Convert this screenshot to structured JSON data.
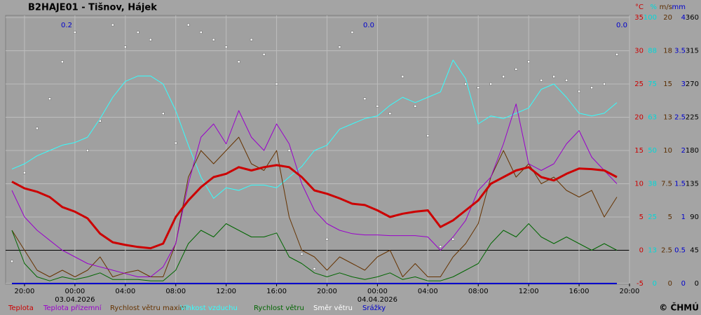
{
  "chart_data": {
    "type": "line",
    "title": "B2HAJE01 - Tišnov, Hájek",
    "copyright": "© ČHMÚ",
    "x": [
      -5,
      -4,
      -3,
      -2,
      -1,
      0,
      1,
      2,
      3,
      4,
      5,
      6,
      7,
      8,
      9,
      10,
      11,
      12,
      13,
      14,
      15,
      16,
      17,
      18,
      19,
      20,
      21,
      22,
      23,
      24,
      25,
      26,
      27,
      28,
      29,
      30,
      31,
      32,
      33,
      34,
      35,
      36,
      37,
      38,
      39,
      40,
      41,
      42,
      43
    ],
    "xlim": [
      -5.5,
      44
    ],
    "xticks": [
      {
        "value": -4,
        "label": "20:00"
      },
      {
        "value": 0,
        "label": "00:00"
      },
      {
        "value": 4,
        "label": "04:00"
      },
      {
        "value": 8,
        "label": "08:00"
      },
      {
        "value": 12,
        "label": "12:00"
      },
      {
        "value": 16,
        "label": "16:00"
      },
      {
        "value": 20,
        "label": "20:00"
      },
      {
        "value": 24,
        "label": "00:00"
      },
      {
        "value": 28,
        "label": "04:00"
      },
      {
        "value": 32,
        "label": "08:00"
      },
      {
        "value": 36,
        "label": "12:00"
      },
      {
        "value": 40,
        "label": "16:00"
      },
      {
        "value": 44,
        "label": "20:00"
      }
    ],
    "dates": [
      {
        "value": 0,
        "label": "03.04.2026"
      },
      {
        "value": 24,
        "label": "04.04.2026"
      }
    ],
    "precip_totals": [
      0.2,
      0,
      0
    ],
    "precip_total_labels": [
      "0.2",
      "0.0",
      "0.0"
    ],
    "grid": true,
    "axes": [
      {
        "unit": "°C",
        "color": "#cc0000",
        "lim": [
          -5,
          35
        ],
        "ticks": [
          35,
          30,
          25,
          20,
          15,
          10,
          5,
          0,
          -5
        ]
      },
      {
        "unit": "%",
        "color": "#00d8d8",
        "lim": [
          0,
          100
        ],
        "ticks": [
          100,
          {
            "value": 87.5,
            "label": "88"
          },
          75,
          {
            "value": 62.5,
            "label": "63"
          },
          50,
          {
            "value": 37.5,
            "label": "38"
          },
          25,
          {
            "value": 12.5,
            "label": "13"
          },
          0
        ]
      },
      {
        "unit": "m/s",
        "color": "#5a2d00",
        "lim": [
          0,
          20
        ],
        "ticks": [
          20,
          {
            "value": 17.5,
            "label": "18"
          },
          15,
          {
            "value": 12.5,
            "label": "13"
          },
          10,
          7.5,
          5,
          2.5,
          0
        ]
      },
      {
        "unit": "mm",
        "color": "#0000cc",
        "lim": [
          0,
          4
        ],
        "ticks": [
          4,
          3.5,
          3,
          2.5,
          2,
          1.5,
          1,
          0.5,
          0
        ]
      },
      {
        "color": "#000000",
        "lim": [
          0,
          360
        ],
        "ticks": [
          360,
          315,
          270,
          225,
          180,
          135,
          90,
          45,
          0
        ]
      }
    ],
    "series": [
      {
        "name": "Teplota",
        "color": "#cc0000",
        "axis": 0,
        "line_width": 3,
        "values": [
          10.3,
          9.3,
          8.8,
          8.0,
          6.5,
          5.8,
          4.8,
          2.5,
          1.2,
          0.8,
          0.5,
          0.3,
          1.0,
          5.0,
          7.5,
          9.5,
          11.0,
          11.5,
          12.5,
          12.0,
          12.5,
          12.8,
          12.5,
          11.0,
          9.0,
          8.5,
          7.8,
          7.0,
          6.8,
          6.0,
          5.0,
          5.5,
          5.8,
          6.0,
          3.5,
          4.5,
          6.0,
          7.5,
          10.0,
          11.0,
          12.0,
          12.5,
          11.0,
          10.5,
          11.5,
          12.3,
          12.2,
          12.0,
          11.0
        ]
      },
      {
        "name": "Teplota přízemní",
        "color": "#9900cc",
        "axis": 0,
        "line_width": 1,
        "values": [
          9,
          5,
          3,
          1.5,
          0,
          -1,
          -2,
          -2.5,
          -3,
          -3.5,
          -4,
          -4,
          -2.5,
          1,
          10,
          17,
          19,
          16,
          21,
          17,
          15,
          19,
          16,
          10,
          6,
          4,
          3,
          2.5,
          2.3,
          2.3,
          2.2,
          2.2,
          2.2,
          2,
          0,
          2,
          4.5,
          9,
          11,
          16,
          22,
          13,
          12,
          13,
          16,
          18,
          14,
          12,
          10
        ]
      },
      {
        "name": "Rychlost větru maxim",
        "color": "#663300",
        "axis": 2,
        "line_width": 1,
        "values": [
          4,
          2.5,
          1,
          0.5,
          1,
          0.5,
          1,
          2,
          0.5,
          0.8,
          1,
          0.5,
          0.5,
          3,
          8,
          10,
          9,
          10,
          11,
          9,
          8.5,
          10,
          5,
          2.5,
          2,
          1,
          2,
          1.5,
          1,
          2,
          2.5,
          0.5,
          1.5,
          0.5,
          0.5,
          2,
          3,
          4.5,
          8,
          10,
          8,
          9,
          7.5,
          8,
          7,
          6.5,
          7,
          5,
          6.5
        ]
      },
      {
        "name": "Vlhkost vzduchu",
        "color": "#33ffff",
        "axis": 1,
        "line_width": 1,
        "values": [
          43,
          45,
          48,
          50,
          52,
          53,
          55,
          62,
          70,
          76,
          78,
          78,
          75,
          65,
          52,
          40,
          32,
          36,
          35,
          37,
          37,
          36,
          40,
          44,
          50,
          52,
          58,
          60,
          62,
          63,
          67,
          70,
          68,
          70,
          72,
          84,
          77,
          60,
          63,
          62,
          64,
          66,
          73,
          75,
          70,
          64,
          63,
          64,
          68
        ]
      },
      {
        "name": "Rychlost větru",
        "color": "#006600",
        "axis": 2,
        "line_width": 1,
        "values": [
          4,
          1.5,
          0.5,
          0.2,
          0.5,
          0.3,
          0.5,
          0.8,
          0.3,
          0.3,
          0.3,
          0.2,
          0.2,
          1,
          3,
          4,
          3.5,
          4.5,
          4,
          3.5,
          3.5,
          3.8,
          2,
          1.5,
          0.8,
          0.5,
          0.8,
          0.5,
          0.3,
          0.5,
          0.8,
          0.3,
          0.5,
          0.2,
          0.2,
          0.5,
          1,
          1.5,
          3,
          4,
          3.5,
          4.5,
          3.5,
          3,
          3.5,
          3,
          2.5,
          3,
          2.5
        ]
      },
      {
        "name": "Směr  větru",
        "color": "#ffffff",
        "axis": 4,
        "points": true,
        "values": [
          30,
          150,
          210,
          250,
          300,
          340,
          180,
          220,
          350,
          320,
          340,
          330,
          230,
          190,
          350,
          340,
          330,
          320,
          300,
          330,
          310,
          270,
          180,
          40,
          20,
          60,
          320,
          340,
          250,
          240,
          230,
          280,
          240,
          200,
          50,
          60,
          270,
          265,
          270,
          280,
          290,
          300,
          275,
          280,
          275,
          260,
          265,
          270,
          310
        ]
      },
      {
        "name": "Srážky",
        "color": "#0000cc",
        "axis": 3,
        "line_width": 2,
        "values": [
          0,
          0,
          0,
          0,
          0,
          0,
          0,
          0,
          0,
          0,
          0,
          0,
          0,
          0,
          0,
          0,
          0,
          0,
          0,
          0,
          0,
          0,
          0,
          0,
          0,
          0,
          0,
          0,
          0,
          0,
          0,
          0,
          0,
          0,
          0,
          0,
          0,
          0,
          0,
          0,
          0,
          0,
          0,
          0,
          0,
          0,
          0,
          0,
          0
        ]
      }
    ]
  }
}
